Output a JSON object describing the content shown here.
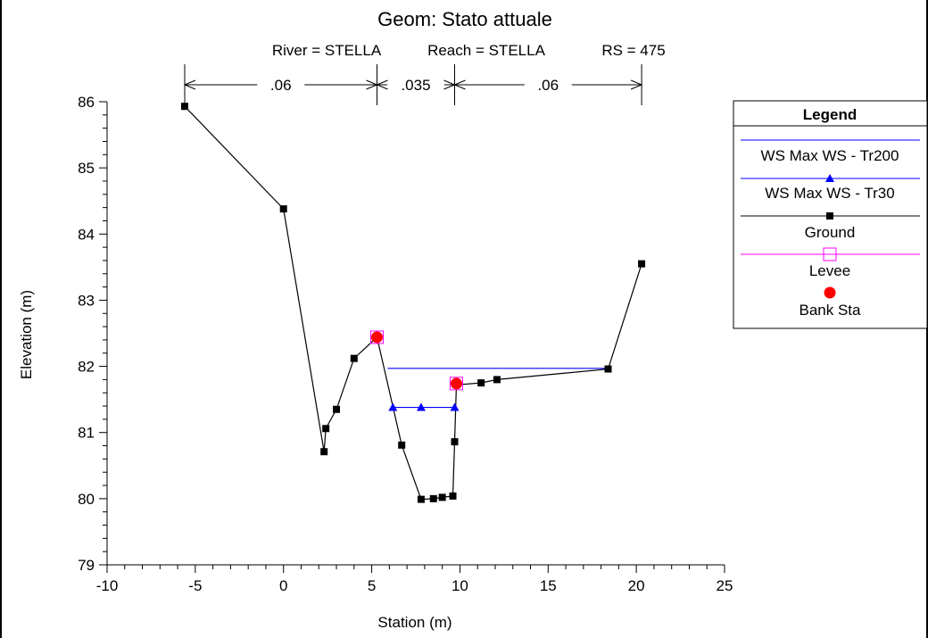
{
  "chart_data": {
    "type": "line",
    "title": "Geom: Stato attuale",
    "subtitle": {
      "river": "River = STELLA",
      "reach": "Reach = STELLA",
      "rs": "RS = 475"
    },
    "xlabel": "Station (m)",
    "ylabel": "Elevation (m)",
    "xlim": [
      -10,
      25
    ],
    "ylim": [
      79,
      86
    ],
    "x_ticks": [
      -10,
      -5,
      0,
      5,
      10,
      15,
      20,
      25
    ],
    "y_ticks": [
      79,
      80,
      81,
      82,
      83,
      84,
      85,
      86
    ],
    "grid": false,
    "legend_position": "right",
    "mannings_n": [
      {
        "label": ".06",
        "from": -5.6,
        "to": 5.3
      },
      {
        "label": ".035",
        "from": 5.3,
        "to": 9.7
      },
      {
        "label": ".06",
        "from": 9.7,
        "to": 20.3
      }
    ],
    "series": [
      {
        "name": "WS Max WS - Tr200",
        "color": "#0000ff",
        "marker": "none",
        "points": [
          [
            5.9,
            81.97
          ],
          [
            18.4,
            81.97
          ]
        ]
      },
      {
        "name": "WS Max WS - Tr30",
        "color": "#0000ff",
        "marker": "triangle",
        "points": [
          [
            6.2,
            81.38
          ],
          [
            7.8,
            81.38
          ],
          [
            9.7,
            81.38
          ]
        ]
      },
      {
        "name": "Ground",
        "color": "#000000",
        "marker": "square",
        "points": [
          [
            -5.6,
            85.93
          ],
          [
            0.0,
            84.38
          ],
          [
            2.3,
            80.71
          ],
          [
            2.4,
            81.06
          ],
          [
            3.0,
            81.35
          ],
          [
            4.0,
            82.12
          ],
          [
            5.3,
            82.44
          ],
          [
            6.7,
            80.81
          ],
          [
            7.8,
            79.99
          ],
          [
            8.5,
            80.0
          ],
          [
            9.0,
            80.02
          ],
          [
            9.6,
            80.04
          ],
          [
            9.7,
            80.86
          ],
          [
            9.8,
            81.72
          ],
          [
            11.2,
            81.75
          ],
          [
            12.1,
            81.8
          ],
          [
            18.4,
            81.96
          ],
          [
            20.3,
            83.55
          ]
        ]
      },
      {
        "name": "Levee",
        "color": "#ff00ff",
        "marker": "open-square",
        "points": [
          [
            5.3,
            82.44
          ],
          [
            9.8,
            81.74
          ]
        ]
      },
      {
        "name": "Bank Sta",
        "color": "#ff0000",
        "marker": "circle",
        "points": [
          [
            5.3,
            82.44
          ],
          [
            9.8,
            81.74
          ]
        ]
      }
    ],
    "legend": {
      "title": "Legend",
      "entries": [
        "WS Max WS - Tr200",
        "WS Max WS - Tr30",
        "Ground",
        "Levee",
        "Bank Sta"
      ]
    }
  }
}
